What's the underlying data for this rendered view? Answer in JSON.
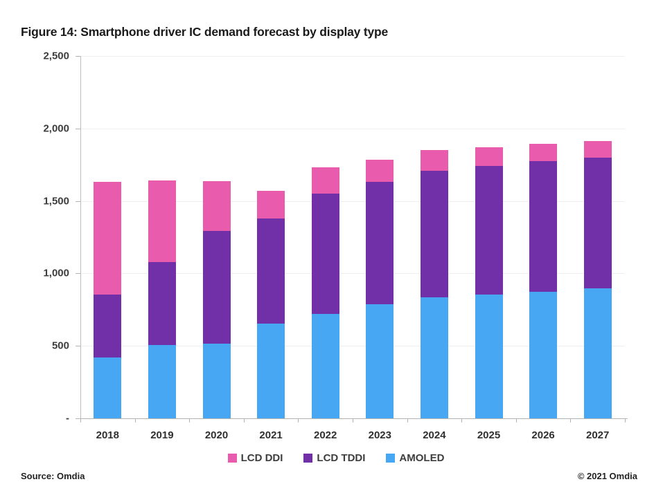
{
  "title": "Figure 14: Smartphone driver IC demand forecast by display type",
  "footer": {
    "source": "Source: Omdia",
    "copyright": "© 2021 Omdia"
  },
  "colors": {
    "gridline": "#efefef",
    "axis": "#b3b3b3",
    "label_text": "#3d3d3d",
    "title_text": "#1a1a1a"
  },
  "chart_data": {
    "type": "bar",
    "stacked": true,
    "title": "Figure 14: Smartphone driver IC demand forecast by display type",
    "xlabel": "",
    "ylabel": "",
    "grid": true,
    "legend_position": "bottom",
    "categories": [
      "2018",
      "2019",
      "2020",
      "2021",
      "2022",
      "2023",
      "2024",
      "2025",
      "2026",
      "2027"
    ],
    "series": [
      {
        "name": "AMOLED",
        "color": "#48a7f2",
        "values": [
          420,
          505,
          515,
          655,
          720,
          785,
          835,
          855,
          875,
          895
        ]
      },
      {
        "name": "LCD TDDI",
        "color": "#7230a8",
        "values": [
          435,
          575,
          780,
          725,
          830,
          845,
          875,
          885,
          900,
          905
        ]
      },
      {
        "name": "LCD DDI",
        "color": "#e85bad",
        "values": [
          775,
          560,
          340,
          190,
          180,
          155,
          140,
          130,
          120,
          115
        ]
      }
    ],
    "stack_order_note": "series listed bottom-to-top",
    "legend_order": [
      2,
      1,
      0
    ],
    "totals": [
      1630,
      1640,
      1635,
      1570,
      1730,
      1785,
      1850,
      1870,
      1895,
      1915
    ],
    "y_axis": {
      "min": 0,
      "max": 2500,
      "tick_interval": 500,
      "tick_values": [
        2500,
        2000,
        1500,
        1000,
        500,
        0
      ],
      "tick_labels": [
        "2,500",
        "2,000",
        "1,500",
        "1,000",
        "500",
        "-"
      ]
    }
  }
}
